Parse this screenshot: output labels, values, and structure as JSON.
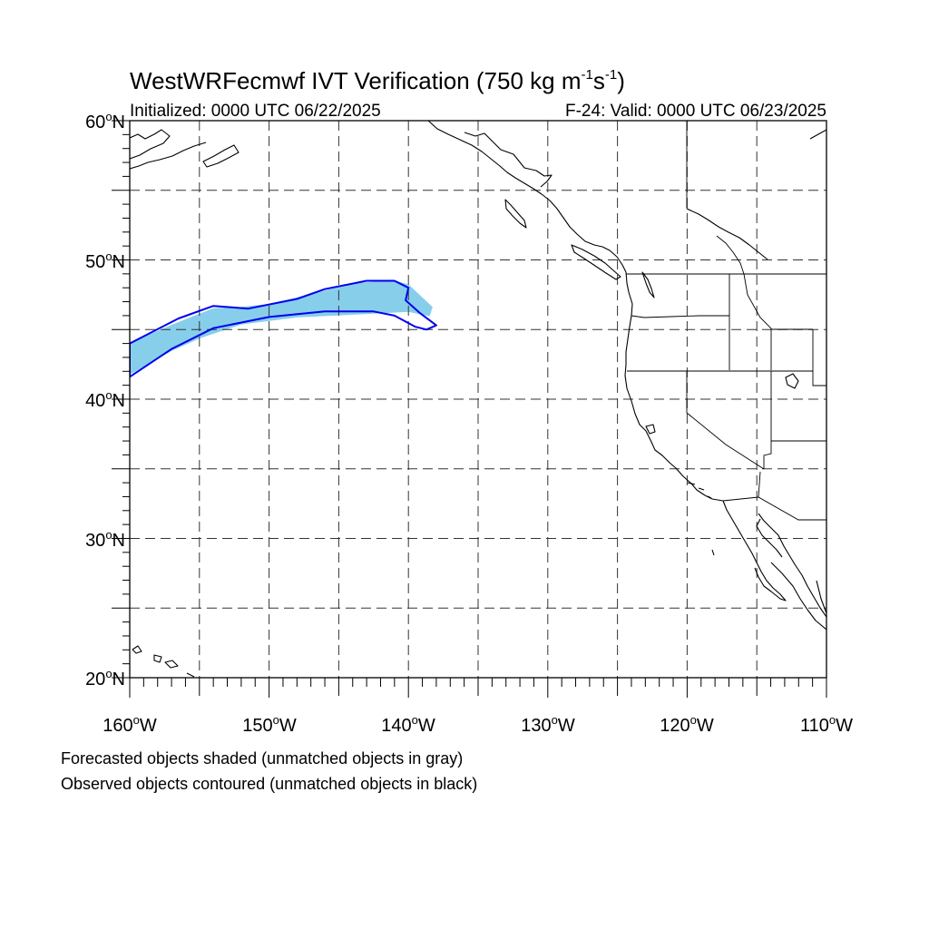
{
  "title_main": "WestWRFecmwf IVT Verification (750 kg m",
  "title_exp1": "-1",
  "title_mid": "s",
  "title_exp2": "-1",
  "title_close": ")",
  "initialized": "Initialized: 0000 UTC 06/22/2025",
  "valid": "F-24: Valid: 0000 UTC 06/23/2025",
  "lat_labels": [
    "60",
    "50",
    "40",
    "30",
    "20"
  ],
  "lon_labels": [
    "160",
    "150",
    "140",
    "130",
    "120",
    "110"
  ],
  "lat_suffix": "N",
  "lon_suffix": "W",
  "degree_symbol": "o",
  "legend_line1": "Forecasted objects shaded (unmatched objects in gray)",
  "legend_line2": "Observed objects contoured (unmatched objects in black)",
  "colors": {
    "forecast_fill": "#87ceeb",
    "observed_contour": "#0000ee",
    "coastline": "#000000",
    "grid": "#333333"
  },
  "map": {
    "lon_range": [
      -160,
      -110
    ],
    "lat_range": [
      20,
      60
    ],
    "grid_lon": [
      -155,
      -150,
      -145,
      -140,
      -135,
      -130,
      -125,
      -120,
      -115
    ],
    "grid_lat": [
      25,
      30,
      35,
      40,
      45,
      50,
      55
    ]
  },
  "objects": {
    "forecast_shaded": [
      [
        -160,
        44.0
      ],
      [
        -157,
        45.3
      ],
      [
        -154,
        46.5
      ],
      [
        -152,
        46.6
      ],
      [
        -150,
        46.8
      ],
      [
        -147,
        47.5
      ],
      [
        -144,
        48.3
      ],
      [
        -141,
        48.5
      ],
      [
        -140,
        48.2
      ],
      [
        -138.3,
        46.6
      ],
      [
        -138.5,
        46.0
      ],
      [
        -140,
        46.3
      ],
      [
        -144,
        46.1
      ],
      [
        -148,
        45.9
      ],
      [
        -152,
        45.4
      ],
      [
        -155,
        44.4
      ],
      [
        -157,
        43.5
      ],
      [
        -160,
        41.8
      ]
    ],
    "observed_contour": [
      [
        -160,
        44.0
      ],
      [
        -156.5,
        45.8
      ],
      [
        -154,
        46.7
      ],
      [
        -151.5,
        46.5
      ],
      [
        -148,
        47.2
      ],
      [
        -146,
        47.9
      ],
      [
        -143,
        48.5
      ],
      [
        -141,
        48.5
      ],
      [
        -140,
        48.0
      ],
      [
        -140.2,
        47.1
      ],
      [
        -139.2,
        46.2
      ],
      [
        -138,
        45.3
      ],
      [
        -138.7,
        45.0
      ],
      [
        -139.5,
        45.2
      ],
      [
        -141,
        46.0
      ],
      [
        -142.5,
        46.3
      ],
      [
        -146,
        46.3
      ],
      [
        -150,
        45.9
      ],
      [
        -154,
        45.1
      ],
      [
        -157,
        43.6
      ],
      [
        -160,
        41.6
      ]
    ]
  }
}
